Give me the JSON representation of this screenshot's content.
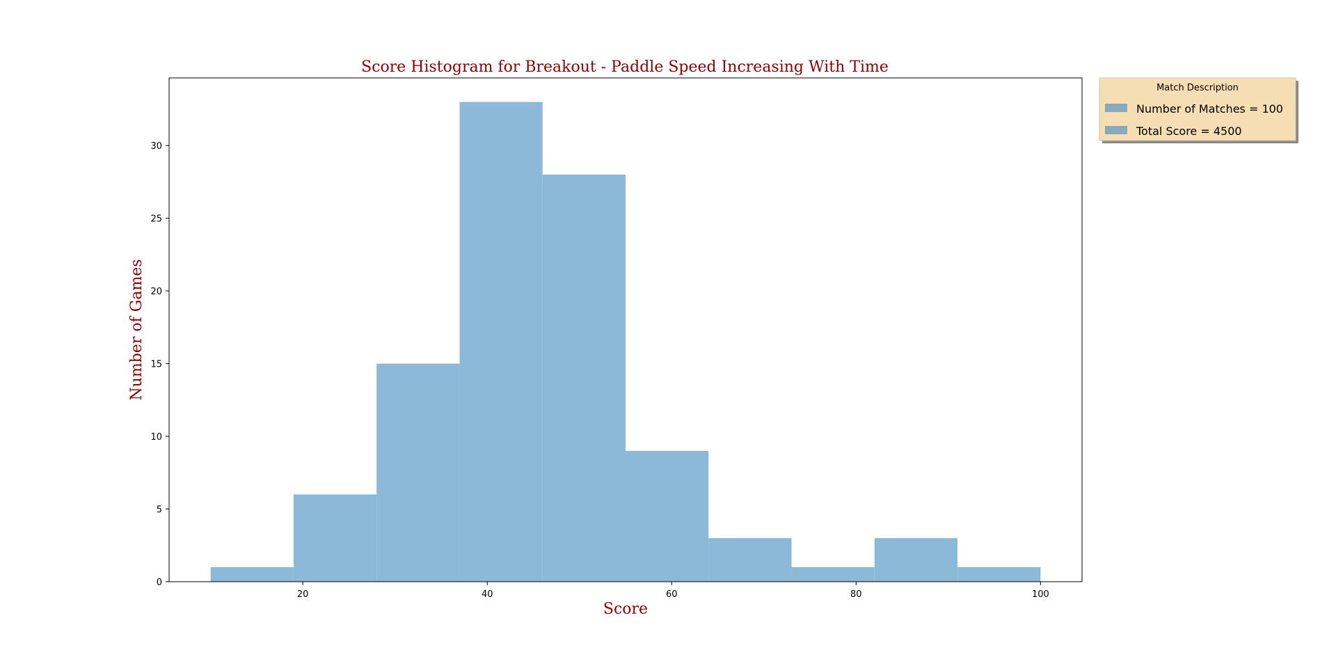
{
  "colors": {
    "bar": "#8db9d9",
    "title": "#8b0000",
    "legend_bg": "#f5deb3",
    "legend_patch": "#8aa9ba"
  },
  "chart_data": {
    "type": "bar",
    "title": "Score Histogram for Breakout - Paddle Speed Increasing With Time",
    "xlabel": "Score",
    "ylabel": "Number of Games",
    "bin_edges": [
      10,
      19,
      28,
      37,
      46,
      55,
      64,
      73,
      82,
      91,
      100
    ],
    "counts": [
      1,
      6,
      15,
      33,
      28,
      9,
      3,
      1,
      3,
      1
    ],
    "xlim": [
      5.5,
      104.5
    ],
    "ylim": [
      0,
      34.65
    ],
    "x_ticks": [
      20,
      40,
      60,
      80,
      100
    ],
    "y_ticks": [
      0,
      5,
      10,
      15,
      20,
      25,
      30
    ],
    "grid": false,
    "legend": {
      "placement": "outside-top-right",
      "title": "Match Description",
      "entries": [
        "Number of Matches = 100",
        "Total Score = 4500"
      ]
    }
  }
}
